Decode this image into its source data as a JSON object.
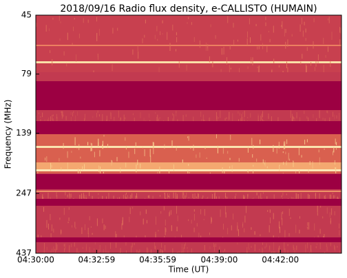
{
  "chart_data": {
    "type": "spectrogram",
    "title": "2018/09/16  Radio flux density, e-CALLISTO (HUMAIN)",
    "xlabel": "Time (UT)",
    "ylabel": "Frequency (MHz)",
    "xlim": [
      "04:30:00",
      "04:45:00"
    ],
    "xticks": [
      "04:30:00",
      "04:32:59",
      "04:35:59",
      "04:39:00",
      "04:42:00"
    ],
    "ylim": [
      437,
      45
    ],
    "ylog": true,
    "yticks": [
      45,
      79,
      139,
      247,
      437
    ]
  }
}
